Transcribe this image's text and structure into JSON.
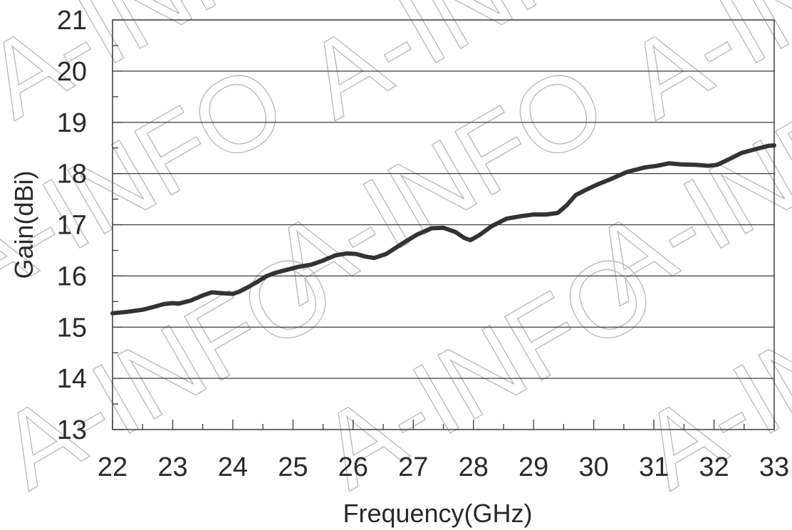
{
  "watermark": "A-INFO",
  "chart_data": {
    "type": "line",
    "title": "",
    "xlabel": "Frequency(GHz)",
    "ylabel": "Gain(dBi)",
    "xlim": [
      22,
      33
    ],
    "ylim": [
      13,
      21
    ],
    "xticks": [
      22,
      23,
      24,
      25,
      26,
      27,
      28,
      29,
      30,
      31,
      32,
      33
    ],
    "yticks": [
      13,
      14,
      15,
      16,
      17,
      18,
      19,
      20,
      21
    ],
    "grid": "horizontal",
    "legend": "none",
    "line_color": "#333333",
    "series": [
      {
        "x": [
          22.0,
          22.25,
          22.5,
          22.7,
          22.85,
          23.0,
          23.1,
          23.3,
          23.5,
          23.65,
          23.85,
          24.0,
          24.1,
          24.25,
          24.4,
          24.55,
          24.7,
          24.9,
          25.1,
          25.3,
          25.5,
          25.7,
          25.9,
          26.05,
          26.2,
          26.35,
          26.55,
          26.8,
          27.05,
          27.3,
          27.5,
          27.7,
          27.85,
          27.95,
          28.1,
          28.3,
          28.55,
          28.8,
          29.0,
          29.2,
          29.4,
          29.55,
          29.7,
          29.85,
          30.05,
          30.3,
          30.55,
          30.85,
          31.05,
          31.25,
          31.45,
          31.7,
          31.9,
          32.05,
          32.25,
          32.45,
          32.7,
          32.9,
          33.0
        ],
        "y": [
          15.27,
          15.3,
          15.34,
          15.4,
          15.45,
          15.47,
          15.46,
          15.52,
          15.62,
          15.68,
          15.66,
          15.65,
          15.69,
          15.78,
          15.88,
          15.99,
          16.06,
          16.12,
          16.18,
          16.22,
          16.3,
          16.4,
          16.44,
          16.43,
          16.38,
          16.35,
          16.43,
          16.62,
          16.8,
          16.93,
          16.94,
          16.86,
          16.74,
          16.7,
          16.8,
          16.97,
          17.12,
          17.17,
          17.2,
          17.2,
          17.23,
          17.38,
          17.58,
          17.67,
          17.78,
          17.9,
          18.03,
          18.12,
          18.15,
          18.2,
          18.18,
          18.17,
          18.15,
          18.17,
          18.28,
          18.4,
          18.48,
          18.54,
          18.55
        ]
      }
    ]
  }
}
